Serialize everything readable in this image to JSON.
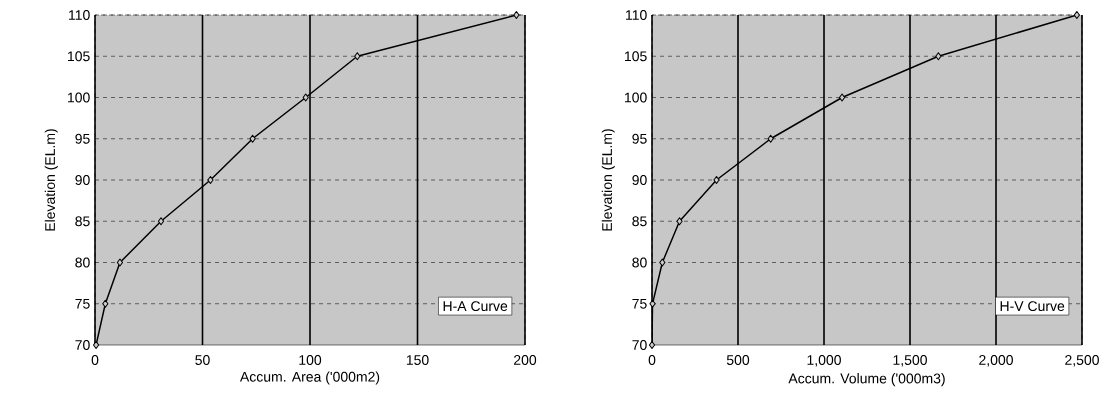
{
  "chart_data": [
    {
      "type": "line",
      "xlabel": "Accum. Area ('000m2)",
      "ylabel": "Elevation (EL.m)",
      "annotations": [
        "H-A Curve"
      ],
      "x": [
        0.5,
        4.8,
        11.6,
        30.7,
        53.7,
        73.3,
        98,
        122,
        196
      ],
      "series": [
        {
          "color": "#000000",
          "values": [
            70,
            75,
            80,
            85,
            90,
            95,
            100,
            105,
            110
          ]
        }
      ],
      "xlim": [
        0,
        200
      ],
      "xticks": [
        0,
        50,
        100,
        150,
        200
      ],
      "ylim": [
        70,
        110
      ],
      "yticks": [
        70,
        75,
        80,
        85,
        90,
        95,
        100,
        105,
        110
      ],
      "grid": true,
      "marker": "diamond"
    },
    {
      "type": "line",
      "xlabel": "Accum. Volume ('000m3)",
      "ylabel": "Elevation (EL.m)",
      "annotations": [
        "H-V Curve"
      ],
      "x": [
        0,
        3,
        60,
        160,
        375,
        690,
        1105,
        1665,
        2470
      ],
      "series": [
        {
          "color": "#000000",
          "values": [
            70,
            75,
            80,
            85,
            90,
            95,
            100,
            105,
            110
          ]
        }
      ],
      "xlim": [
        0,
        2500
      ],
      "xticks": [
        0,
        500,
        {
          "value": 1000,
          "label": "1,000"
        },
        {
          "value": 1500,
          "label": "1,500"
        },
        {
          "value": 2000,
          "label": "2,000"
        },
        {
          "value": 2500,
          "label": "2,500"
        }
      ],
      "ylim": [
        70,
        110
      ],
      "yticks": [
        70,
        75,
        80,
        85,
        90,
        95,
        100,
        105,
        110
      ],
      "grid": true,
      "marker": "diamond"
    }
  ]
}
